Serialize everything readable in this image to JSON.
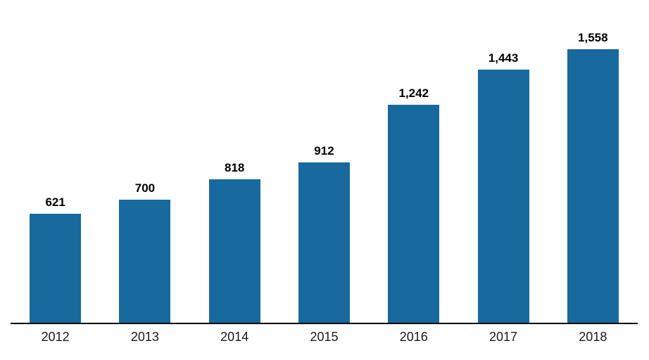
{
  "chart_data": {
    "type": "bar",
    "title": "",
    "xlabel": "",
    "ylabel": "",
    "categories": [
      "2012",
      "2013",
      "2014",
      "2015",
      "2016",
      "2017",
      "2018"
    ],
    "values": [
      621,
      700,
      818,
      912,
      1242,
      1443,
      1558
    ],
    "value_labels": [
      "621",
      "700",
      "818",
      "912",
      "1,242",
      "1,443",
      "1,558"
    ],
    "ylim": [
      0,
      1558
    ],
    "grid": false,
    "legend": false,
    "bar_color": "#17699E",
    "axis_line_color": "#000000",
    "value_label_color": "#000000",
    "tick_label_color": "#1a1a1a",
    "background_color": "#ffffff"
  }
}
